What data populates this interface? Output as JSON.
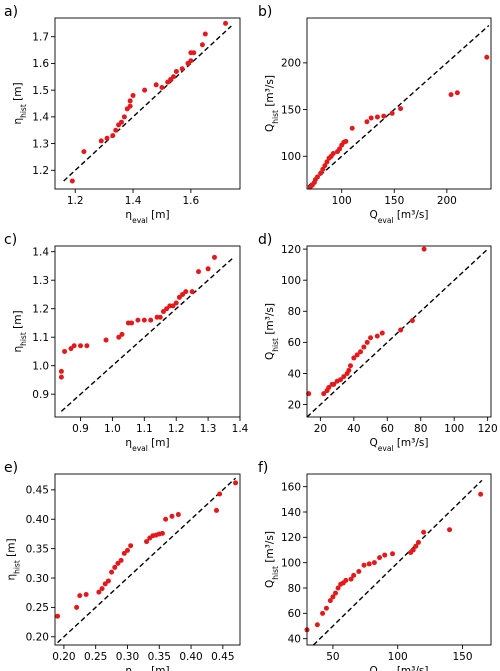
{
  "chart_data": [
    {
      "type": "scatter",
      "panel_label": "a)",
      "xlabel": {
        "base": "η",
        "sub": "eval",
        "unit": " [m]"
      },
      "ylabel": {
        "base": "η",
        "sub": "hist",
        "unit": " [m]"
      },
      "xlim": [
        1.13,
        1.77
      ],
      "ylim": [
        1.13,
        1.77
      ],
      "xticks": [
        1.2,
        1.4,
        1.6
      ],
      "yticks": [
        1.2,
        1.3,
        1.4,
        1.5,
        1.6,
        1.7
      ],
      "xtick_labels": [
        "1.2",
        "1.4",
        "1.6"
      ],
      "ytick_labels": [
        "1.2",
        "1.3",
        "1.4",
        "1.5",
        "1.6",
        "1.7"
      ],
      "reference_line": [
        [
          1.16,
          1.16
        ],
        [
          1.74,
          1.74
        ]
      ],
      "series": [
        {
          "color": "#e31a1c",
          "points": [
            [
              1.19,
              1.16
            ],
            [
              1.23,
              1.27
            ],
            [
              1.29,
              1.31
            ],
            [
              1.31,
              1.32
            ],
            [
              1.33,
              1.33
            ],
            [
              1.34,
              1.35
            ],
            [
              1.35,
              1.37
            ],
            [
              1.36,
              1.38
            ],
            [
              1.37,
              1.4
            ],
            [
              1.38,
              1.43
            ],
            [
              1.39,
              1.44
            ],
            [
              1.39,
              1.46
            ],
            [
              1.4,
              1.48
            ],
            [
              1.44,
              1.5
            ],
            [
              1.48,
              1.52
            ],
            [
              1.5,
              1.51
            ],
            [
              1.52,
              1.53
            ],
            [
              1.53,
              1.54
            ],
            [
              1.54,
              1.55
            ],
            [
              1.55,
              1.57
            ],
            [
              1.57,
              1.58
            ],
            [
              1.59,
              1.6
            ],
            [
              1.6,
              1.61
            ],
            [
              1.6,
              1.64
            ],
            [
              1.61,
              1.64
            ],
            [
              1.64,
              1.67
            ],
            [
              1.65,
              1.71
            ],
            [
              1.72,
              1.75
            ]
          ]
        }
      ]
    },
    {
      "type": "scatter",
      "panel_label": "b)",
      "xlabel": {
        "base": "Q",
        "sub": "eval",
        "unit": " [m³/s]"
      },
      "ylabel": {
        "base": "Q",
        "sub": "hist",
        "unit": " [m³/s]"
      },
      "xlim": [
        67,
        242
      ],
      "ylim": [
        65,
        248
      ],
      "xticks": [
        100,
        150,
        200
      ],
      "yticks": [
        100,
        150,
        200
      ],
      "xtick_labels": [
        "100",
        "150",
        "200"
      ],
      "ytick_labels": [
        "100",
        "150",
        "200"
      ],
      "reference_line": [
        [
          68,
          68
        ],
        [
          240,
          240
        ]
      ],
      "series": [
        {
          "color": "#e31a1c",
          "points": [
            [
              70,
              67
            ],
            [
              72,
              69
            ],
            [
              74,
              72
            ],
            [
              75,
              75
            ],
            [
              77,
              78
            ],
            [
              80,
              82
            ],
            [
              82,
              86
            ],
            [
              84,
              90
            ],
            [
              86,
              94
            ],
            [
              88,
              98
            ],
            [
              90,
              100
            ],
            [
              92,
              103
            ],
            [
              96,
              105
            ],
            [
              98,
              108
            ],
            [
              100,
              112
            ],
            [
              102,
              115
            ],
            [
              104,
              116
            ],
            [
              110,
              130
            ],
            [
              124,
              137
            ],
            [
              128,
              141
            ],
            [
              134,
              142
            ],
            [
              140,
              143
            ],
            [
              148,
              146
            ],
            [
              156,
              151
            ],
            [
              204,
              166
            ],
            [
              210,
              168
            ],
            [
              238,
              206
            ]
          ]
        }
      ]
    },
    {
      "type": "scatter",
      "panel_label": "c)",
      "xlabel": {
        "base": "η",
        "sub": "eval",
        "unit": " [m]"
      },
      "ylabel": {
        "base": "η",
        "sub": "hist",
        "unit": " [m]"
      },
      "xlim": [
        0.82,
        1.4
      ],
      "ylim": [
        0.82,
        1.42
      ],
      "xticks": [
        0.9,
        1.0,
        1.1,
        1.2,
        1.3,
        1.4
      ],
      "yticks": [
        0.9,
        1.0,
        1.1,
        1.2,
        1.3,
        1.4
      ],
      "xtick_labels": [
        "0.9",
        "1.0",
        "1.1",
        "1.2",
        "1.3",
        "1.4"
      ],
      "ytick_labels": [
        "0.9",
        "1.0",
        "1.1",
        "1.2",
        "1.3",
        "1.4"
      ],
      "reference_line": [
        [
          0.84,
          0.84
        ],
        [
          1.38,
          1.38
        ]
      ],
      "series": [
        {
          "color": "#e31a1c",
          "points": [
            [
              0.84,
              0.96
            ],
            [
              0.84,
              0.98
            ],
            [
              0.85,
              1.05
            ],
            [
              0.87,
              1.06
            ],
            [
              0.88,
              1.07
            ],
            [
              0.9,
              1.07
            ],
            [
              0.92,
              1.07
            ],
            [
              0.98,
              1.09
            ],
            [
              1.02,
              1.1
            ],
            [
              1.03,
              1.11
            ],
            [
              1.05,
              1.15
            ],
            [
              1.06,
              1.15
            ],
            [
              1.08,
              1.16
            ],
            [
              1.1,
              1.16
            ],
            [
              1.12,
              1.16
            ],
            [
              1.14,
              1.17
            ],
            [
              1.15,
              1.17
            ],
            [
              1.16,
              1.19
            ],
            [
              1.17,
              1.2
            ],
            [
              1.18,
              1.21
            ],
            [
              1.19,
              1.21
            ],
            [
              1.2,
              1.22
            ],
            [
              1.21,
              1.24
            ],
            [
              1.22,
              1.25
            ],
            [
              1.23,
              1.26
            ],
            [
              1.25,
              1.26
            ],
            [
              1.27,
              1.33
            ],
            [
              1.3,
              1.34
            ],
            [
              1.32,
              1.38
            ]
          ]
        }
      ]
    },
    {
      "type": "scatter",
      "panel_label": "d)",
      "xlabel": {
        "base": "Q",
        "sub": "eval",
        "unit": " [m³/s]"
      },
      "ylabel": {
        "base": "Q",
        "sub": "hist",
        "unit": " [m³/s]"
      },
      "xlim": [
        12,
        122
      ],
      "ylim": [
        12,
        122
      ],
      "xticks": [
        20,
        40,
        60,
        80,
        100,
        120
      ],
      "yticks": [
        20,
        40,
        60,
        80,
        100,
        120
      ],
      "xtick_labels": [
        "20",
        "40",
        "60",
        "80",
        "100",
        "120"
      ],
      "ytick_labels": [
        "20",
        "40",
        "60",
        "80",
        "100",
        "120"
      ],
      "reference_line": [
        [
          12,
          12
        ],
        [
          120,
          120
        ]
      ],
      "series": [
        {
          "color": "#e31a1c",
          "points": [
            [
              13,
              27
            ],
            [
              22,
              27
            ],
            [
              24,
              29
            ],
            [
              25,
              31
            ],
            [
              27,
              33
            ],
            [
              28,
              33
            ],
            [
              30,
              35
            ],
            [
              32,
              36
            ],
            [
              34,
              38
            ],
            [
              36,
              40
            ],
            [
              37,
              42
            ],
            [
              38,
              45
            ],
            [
              40,
              50
            ],
            [
              42,
              52
            ],
            [
              44,
              54
            ],
            [
              46,
              57
            ],
            [
              48,
              60
            ],
            [
              50,
              63
            ],
            [
              54,
              64
            ],
            [
              57,
              66
            ],
            [
              68,
              68
            ],
            [
              75,
              74
            ],
            [
              82,
              120
            ]
          ]
        }
      ]
    },
    {
      "type": "scatter",
      "panel_label": "e)",
      "xlabel": {
        "base": "η",
        "sub": "eval",
        "unit": " [m]"
      },
      "ylabel": {
        "base": "η",
        "sub": "hist",
        "unit": " [m]"
      },
      "xlim": [
        0.186,
        0.477
      ],
      "ylim": [
        0.186,
        0.477
      ],
      "xticks": [
        0.2,
        0.25,
        0.3,
        0.35,
        0.4,
        0.45
      ],
      "yticks": [
        0.2,
        0.25,
        0.3,
        0.35,
        0.4,
        0.45
      ],
      "xtick_labels": [
        "0.20",
        "0.25",
        "0.30",
        "0.35",
        "0.40",
        "0.45"
      ],
      "ytick_labels": [
        "0.20",
        "0.25",
        "0.30",
        "0.35",
        "0.40",
        "0.45"
      ],
      "reference_line": [
        [
          0.19,
          0.19
        ],
        [
          0.47,
          0.47
        ]
      ],
      "series": [
        {
          "color": "#e31a1c",
          "points": [
            [
              0.19,
              0.235
            ],
            [
              0.22,
              0.25
            ],
            [
              0.225,
              0.27
            ],
            [
              0.235,
              0.272
            ],
            [
              0.255,
              0.276
            ],
            [
              0.26,
              0.282
            ],
            [
              0.265,
              0.29
            ],
            [
              0.27,
              0.295
            ],
            [
              0.275,
              0.31
            ],
            [
              0.28,
              0.318
            ],
            [
              0.285,
              0.325
            ],
            [
              0.29,
              0.33
            ],
            [
              0.295,
              0.342
            ],
            [
              0.3,
              0.347
            ],
            [
              0.305,
              0.355
            ],
            [
              0.33,
              0.362
            ],
            [
              0.335,
              0.368
            ],
            [
              0.34,
              0.372
            ],
            [
              0.345,
              0.373
            ],
            [
              0.35,
              0.375
            ],
            [
              0.355,
              0.376
            ],
            [
              0.36,
              0.4
            ],
            [
              0.37,
              0.405
            ],
            [
              0.38,
              0.408
            ],
            [
              0.44,
              0.415
            ],
            [
              0.445,
              0.443
            ],
            [
              0.47,
              0.462
            ]
          ]
        }
      ]
    },
    {
      "type": "scatter",
      "panel_label": "f)",
      "xlabel": {
        "base": "Q",
        "sub": "eval",
        "unit": " [m³/s]"
      },
      "ylabel": {
        "base": "Q",
        "sub": "hist",
        "unit": " [m³/s]"
      },
      "xlim": [
        30,
        172
      ],
      "ylim": [
        35,
        170
      ],
      "xticks": [
        50,
        100,
        150
      ],
      "yticks": [
        40,
        60,
        80,
        100,
        120,
        140,
        160
      ],
      "xtick_labels": [
        "50",
        "100",
        "150"
      ],
      "ytick_labels": [
        "40",
        "60",
        "80",
        "100",
        "120",
        "140",
        "160"
      ],
      "reference_line": [
        [
          35,
          35
        ],
        [
          165,
          165
        ]
      ],
      "series": [
        {
          "color": "#e31a1c",
          "points": [
            [
              30,
              47
            ],
            [
              38,
              51
            ],
            [
              42,
              60
            ],
            [
              45,
              64
            ],
            [
              48,
              70
            ],
            [
              50,
              73
            ],
            [
              52,
              76
            ],
            [
              54,
              80
            ],
            [
              56,
              83
            ],
            [
              58,
              84
            ],
            [
              60,
              86
            ],
            [
              64,
              87
            ],
            [
              66,
              90
            ],
            [
              70,
              93
            ],
            [
              74,
              98
            ],
            [
              78,
              99
            ],
            [
              82,
              100
            ],
            [
              86,
              104
            ],
            [
              90,
              106
            ],
            [
              96,
              107
            ],
            [
              110,
              108
            ],
            [
              112,
              110
            ],
            [
              114,
              113
            ],
            [
              116,
              116
            ],
            [
              120,
              124
            ],
            [
              140,
              126
            ],
            [
              164,
              154
            ]
          ]
        }
      ]
    }
  ]
}
